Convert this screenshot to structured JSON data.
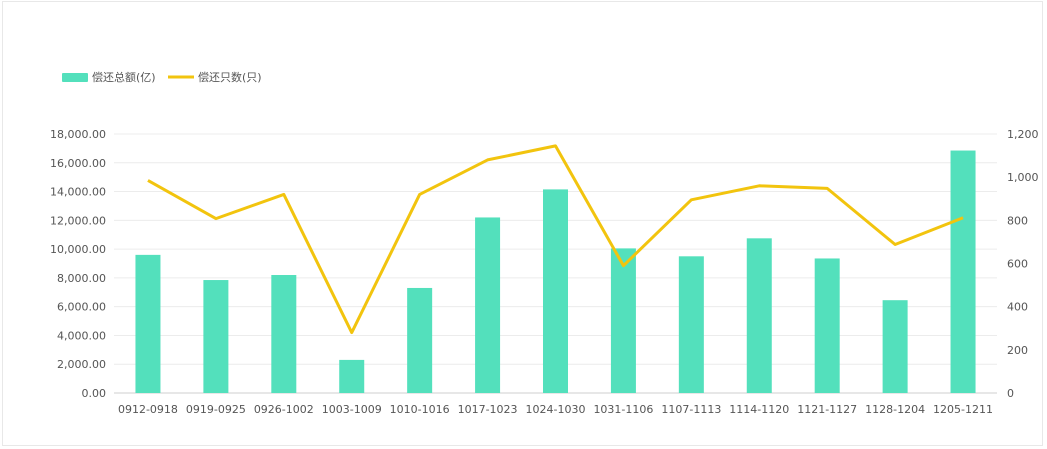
{
  "chart_data": {
    "type": "bar+line",
    "categories": [
      "0912-0918",
      "0919-0925",
      "0926-1002",
      "1003-1009",
      "1010-1016",
      "1017-1023",
      "1024-1030",
      "1031-1106",
      "1107-1113",
      "1114-1120",
      "1121-1127",
      "1128-1204",
      "1205-1211"
    ],
    "series": [
      {
        "name": "偿还总额(亿)",
        "type": "bar",
        "axis": "left",
        "color": "#53E0BC",
        "values": [
          9600,
          7850,
          8200,
          2300,
          7300,
          12200,
          14150,
          10050,
          9500,
          10750,
          9350,
          6450,
          16850
        ]
      },
      {
        "name": "偿还只数(只)",
        "type": "line",
        "axis": "right",
        "color": "#F2C40E",
        "values": [
          985,
          808,
          920,
          280,
          920,
          1080,
          1145,
          590,
          895,
          960,
          948,
          688,
          812
        ]
      }
    ],
    "y_left": {
      "min": 0,
      "max": 18000,
      "step": 2000,
      "tick_labels": [
        "0.00",
        "2,000.00",
        "4,000.00",
        "6,000.00",
        "8,000.00",
        "10,000.00",
        "12,000.00",
        "14,000.00",
        "16,000.00",
        "18,000.00"
      ]
    },
    "y_right": {
      "min": 0,
      "max": 1200,
      "step": 200,
      "tick_labels": [
        "0",
        "200",
        "400",
        "600",
        "800",
        "1,000",
        "1,200"
      ]
    },
    "legend_position": "top-left",
    "grid": true
  }
}
